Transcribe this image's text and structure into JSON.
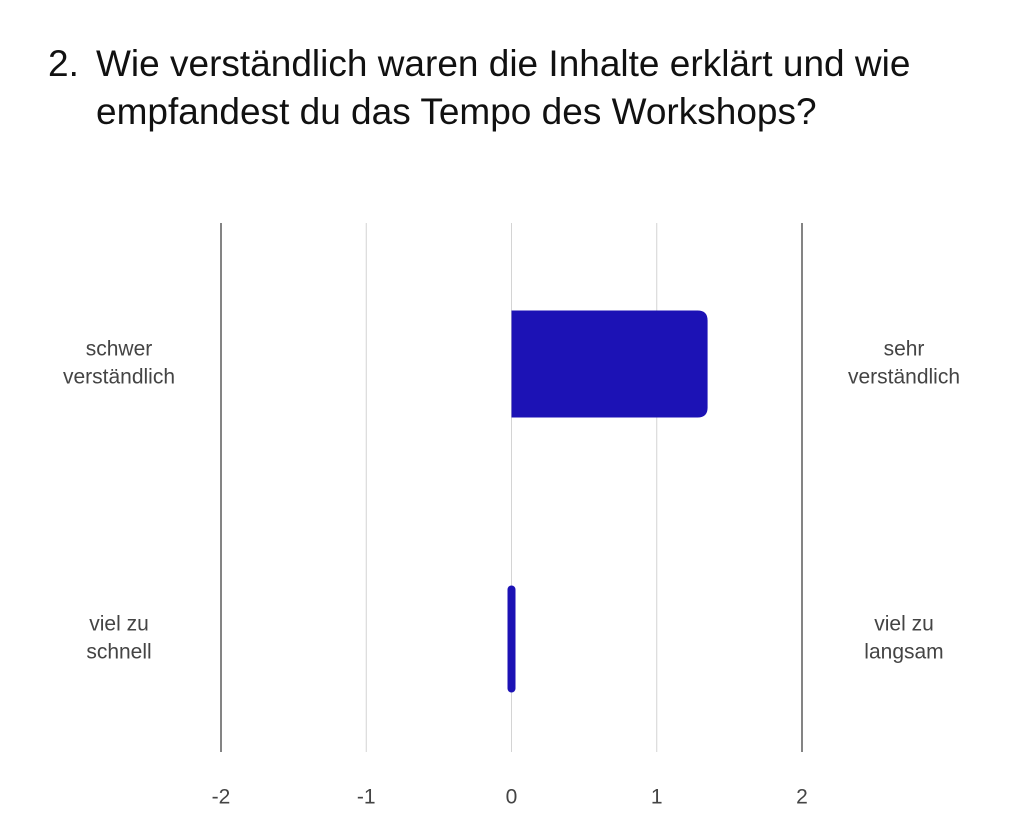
{
  "question": {
    "number": "2.",
    "text": "Wie verständlich waren die Inhalte erklärt und wie empfandest du das Tempo des Workshops?"
  },
  "colors": {
    "bar": "#1c12b5",
    "grid_major": "#333333",
    "grid_minor": "#d4d4d4",
    "label": "#444444"
  },
  "chart_data": {
    "type": "bar",
    "orientation": "horizontal",
    "title": "2. Wie verständlich waren die Inhalte erklärt und wie empfandest du das Tempo des Workshops?",
    "xlim": [
      -2,
      2
    ],
    "x_ticks": [
      "-2",
      "-1",
      "0",
      "1",
      "2"
    ],
    "grid": true,
    "rows": [
      {
        "left_label": [
          "schwer",
          "verständlich"
        ],
        "right_label": [
          "sehr",
          "verständlich"
        ],
        "value": 1.35
      },
      {
        "left_label": [
          "viel zu",
          "schnell"
        ],
        "right_label": [
          "viel zu",
          "langsam"
        ],
        "value": 0.02
      }
    ]
  }
}
